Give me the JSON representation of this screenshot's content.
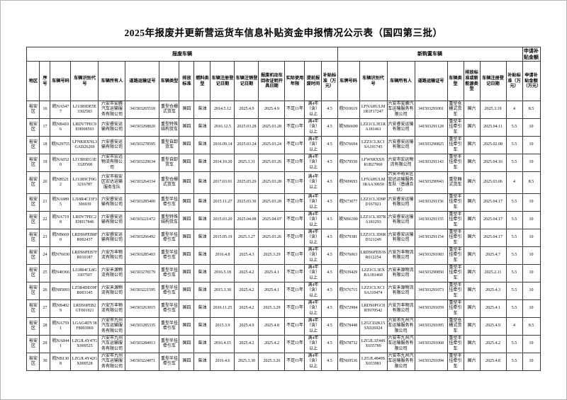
{
  "title": "2025年报废并更新营运货车信息补贴资金申报情况公示表（国四第三批）",
  "table": {
    "bands": {
      "scrapped": "报废车辆",
      "new": "新购置车辆",
      "apply": "申请补贴金额"
    },
    "headers": {
      "region": "地区",
      "seq": "序号",
      "old_plate": "车辆号码",
      "old_vin": "车辆识别代号",
      "old_owner": "车辆所有人",
      "old_cert": "道路运输证号",
      "old_type": "车辆类型",
      "old_emission": "排放标准",
      "old_fuel": "燃料类型",
      "old_reg": "车辆注册登记日期",
      "old_dereg": "车辆注销登记日期",
      "old_recycle": "报废机动车回收证明开具日期",
      "usage": "实际使用年限",
      "early": "提前报废时间",
      "old_subsidy": "补贴标准（万元）",
      "new_plate": "车牌号码",
      "new_vin": "车辆识别代号",
      "new_owner": "车辆所有人",
      "new_cert": "道路运输证号",
      "new_type": "车辆类型",
      "new_emission": "排放标准或新能源类型",
      "new_reg": "车辆注册登记日期",
      "new_subsidy": "补贴标准（万元）",
      "apply_amount": "申请补贴金额（万元）"
    },
    "rows": [
      [
        "裕安区",
        "16",
        "皖NA5477",
        "LJ11R9DE5E3302583",
        "六安市安腾汽车运输服务有限公司",
        "341503265518",
        "重型仓栅式货车",
        "国四",
        "柴油",
        "2014.5.12",
        "2025.4.9",
        "2025.4.9",
        "不足11年",
        "满4年（含）以上",
        "4.5",
        "皖N10619",
        "LFNAHULM1R1F17247",
        "六安市安腾汽车运输服务有限公司",
        "341503291001",
        "重型仓栅式货车",
        "国六",
        "2025.3.19",
        "4",
        "8.5"
      ],
      [
        "裕安区",
        "17",
        "皖NB4106",
        "LRDV7PEC9EH008593",
        "六安睿安运输有限公司",
        "341503268020",
        "重型特殊结构货车",
        "国四",
        "柴油",
        "2016.12.5",
        "2025.03.28",
        "2025.03.28",
        "不足11年",
        "满4年（含）以上",
        "4.5",
        "皖NB6690",
        "LZZ1CL3E1RA181461",
        "六安睿安运输有限公司",
        "341503291128",
        "重型半挂牵引车",
        "国六",
        "2025.04.11",
        "5.5",
        "10"
      ],
      [
        "裕安区",
        "18",
        "皖N29755",
        "LFNKRXNL3GAD26269",
        "六安睿安运输有限公司",
        "341503278595",
        "重型自卸货车",
        "国四",
        "柴油",
        "2016.09.14",
        "2025.03.24",
        "2025.03.24",
        "不足11年",
        "满4年（含）以上",
        "4.5",
        "皖N76694",
        "LZZ1CLXC1SA191745",
        "六安睿安运输有限公司",
        "341503290825",
        "重型半挂牵引车",
        "国六",
        "2025.02.08",
        "5.5",
        "10"
      ],
      [
        "裕安区",
        "19",
        "皖NA6520",
        "LJ13R6EG1E3320568",
        "六安市宏远物流有限公司",
        "341503220634",
        "重型自卸货车",
        "国四",
        "柴油",
        "2014.10.20",
        "2025.3.31",
        "2025.03.26",
        "不足11年",
        "满4年（含）以上",
        "4.5",
        "皖N79550",
        "LFWSRXSJ1R1B27960",
        "六安市宏远物流有限公司",
        "341503291143",
        "重型半挂牵引车",
        "国六",
        "2025.04.16",
        "5.5",
        "10"
      ],
      [
        "裕安区",
        "20",
        "皖NB5212",
        "LJ11R9CF0G3216787",
        "六安市裕安区宏达运输服务车队",
        "341503264334",
        "重型仓栅式货车",
        "国四",
        "柴油",
        "2017.03.01",
        "2025.03.29",
        "2025.03.28",
        "不足11年",
        "满4年（含）以上",
        "4.5",
        "皖N09693",
        "LFNAHULM3RAA30650",
        "六安市裕安区宏达运输服务车队（普通合伙）",
        "341503290943",
        "重型厢式货车",
        "国六",
        "2025.03.06",
        "4",
        "8.5"
      ],
      [
        "裕安区",
        "21",
        "皖NA9895",
        "LJ18R4CJ3F3306939",
        "六安睿安运输有限公司",
        "341503285400",
        "重型半挂牵引车",
        "国四",
        "柴油",
        "2015.11.27",
        "2025.03.30",
        "2025.03.28",
        "不足11年",
        "满4年（含）以上",
        "4.5",
        "皖N73077",
        "LZZ1CL3D9PD167021",
        "六安睿安运输有限公司",
        "341503291156",
        "重型半挂牵引车",
        "国六",
        "2025.04.17",
        "5.5",
        "10"
      ],
      [
        "裕安区",
        "22",
        "皖NA7198",
        "LRDV7PEC2EH017846",
        "六安睿安运输有限公司",
        "341503221472",
        "重型特殊结构货车",
        "国四",
        "柴油",
        "2015.03.20",
        "2025.04.08",
        "2025.04.07",
        "不足11年",
        "满4年（含）以上",
        "4.5",
        "皖NB6390",
        "LZZ1CL3D7RA181293",
        "六安睿安运输有限公司",
        "341503291155",
        "重型半挂牵引车",
        "国六",
        "2025.04.17",
        "5.5",
        "10"
      ],
      [
        "裕安区",
        "23",
        "皖NB6690",
        "LRDS6PEB8FR002437",
        "六安睿安运输有限公司",
        "341503266492",
        "重型半挂牵引车",
        "国四",
        "柴油",
        "2015.05.19",
        "2025.3.27",
        "2025.03.26",
        "不足11年",
        "满4年（含）以上",
        "4.5",
        "皖N79381",
        "LZZ1CL3D6RD321249",
        "六安睿安运输有限公司",
        "341503291154",
        "重型半挂牵引车",
        "国六",
        "2025.04.17",
        "5.5",
        "10"
      ],
      [
        "裕安区",
        "24",
        "皖N76030",
        "LRDS6PEB7FR010187",
        "六安万丰物流有限公司",
        "341503285403",
        "重型半挂牵引车",
        "国四",
        "柴油",
        "2016.4.8",
        "2025.4.3",
        "2025.3.29",
        "不足11年",
        "满4年（含）以上",
        "4.5",
        "皖N76063",
        "LRDS6PEB3SR012254",
        "六安万丰物流有限公司",
        "341503291083",
        "重型半挂牵引车",
        "国六",
        "2025.4.7",
        "5.5",
        "10"
      ],
      [
        "裕安区",
        "25",
        "皖N40366",
        "LJ18R4CL8G3307507",
        "六安禾源物流有限公司",
        "341503278179",
        "重型半挂牵引车",
        "国四",
        "柴油",
        "2016.5.18",
        "2025.4.2",
        "2025.4.1",
        "不足11年",
        "满4年（含）以上",
        "4.5",
        "皖N39429",
        "LZZ1CL3EXRA181460",
        "六安禾源物流有限公司",
        "341503290850",
        "重型半挂牵引车",
        "国六",
        "2025.2.11",
        "5.5",
        "10"
      ],
      [
        "裕安区",
        "26",
        "皖N85093",
        "LZ5R4DD39FB003145",
        "六安禾源物流有限公司",
        "341503221595",
        "重型半挂牵引车",
        "国四",
        "柴油",
        "2015.3.30",
        "2025.4.2",
        "2025.4.1",
        "不足11年",
        "满4年（含）以上",
        "4.5",
        "皖N76715",
        "LZZ1CLXC1SA310474",
        "六安禾源物流有限公司",
        "341503291073",
        "重型半挂牵引车",
        "国六",
        "2025.4.3",
        "5.5",
        "10"
      ],
      [
        "裕安区",
        "27",
        "皖NB4029",
        "LRDS6PEB2GT001921",
        "六安万丰物流有限公司",
        "341503263015",
        "重型半挂牵引车",
        "国四",
        "柴油",
        "2016.11.25",
        "2025.4.2",
        "2025.3.29",
        "不足11年",
        "满4年（含）以上",
        "4.5",
        "皖N72984",
        "LRDS6PGC8RT070542",
        "六安万丰物流有限公司",
        "341503291059",
        "重型半挂牵引车",
        "国六",
        "2025.4.1",
        "5.5",
        "10"
      ],
      [
        "裕安区",
        "28",
        "皖NA7591",
        "LGAG4DY38F8003969",
        "六安市九州汽车运输服务有限公司",
        "341503285335",
        "重型半挂牵引车",
        "国四",
        "柴油",
        "2015.3.9",
        "2025.4.9",
        "2025.4.8",
        "不足11年",
        "满4年（含）以上",
        "4.5",
        "皖N78448",
        "LZGCD2K15SX026924",
        "六安市九州汽车运输服务有限公司",
        "341503291095",
        "重型仓栅式货车",
        "国六",
        "2025.4.9",
        "4",
        "8.5"
      ],
      [
        "裕安区",
        "29",
        "皖NA8441",
        "LZGJL4Y47GX009525",
        "六安市九州汽车运输服务有限公司",
        "341503284913",
        "重型半挂牵引车",
        "国四",
        "柴油",
        "2016.4.15",
        "2025.4.2",
        "2025.4.2",
        "不足11年",
        "满4年（含）以上",
        "4.5",
        "皖N78732",
        "LZGJL3Z44SX035789",
        "六安市九州汽车运输服务有限公司",
        "341503291068",
        "重型半挂牵引车",
        "国六",
        "2025.4.2",
        "5.5",
        "10"
      ],
      [
        "裕安区",
        "30",
        "皖NB1308",
        "LZGJL4Y42GX009528",
        "六安市九州汽车运输服务有限公司",
        "341503224071",
        "重型半挂牵引车",
        "国四",
        "柴油",
        "2016.4.6",
        "2025.3.30",
        "2025.3.26",
        "不足11年",
        "满4年（含）以上",
        "4.5",
        "皖N69536",
        "LZGJL4849SX033981",
        "六安市九州汽车运输服务有限公司",
        "341503291094",
        "重型半挂牵引车",
        "国六",
        "2025.4.8",
        "5.5",
        "10"
      ]
    ]
  }
}
